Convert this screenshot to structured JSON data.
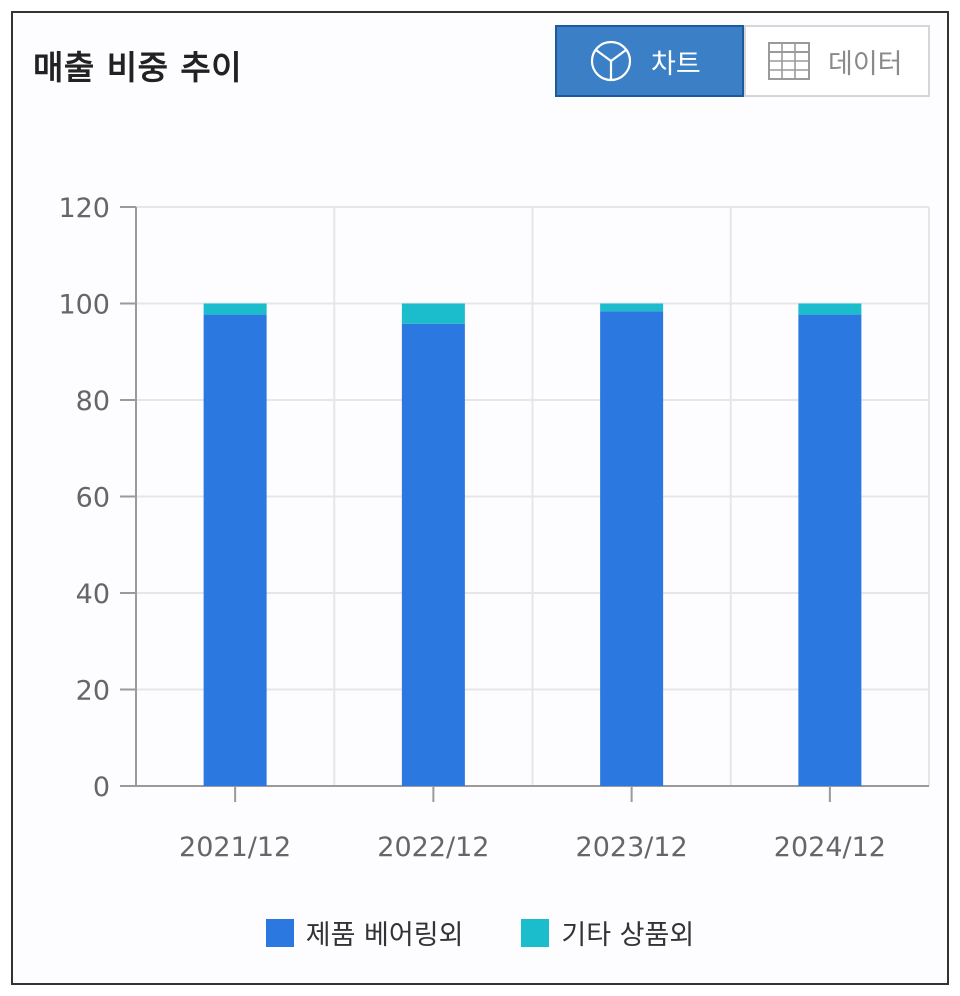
{
  "title": "매출 비중 추이",
  "toggle": {
    "chart_label": "차트",
    "chart_icon": "pie-chart-icon",
    "data_label": "데이터",
    "data_icon": "table-grid-icon",
    "active": "chart"
  },
  "colors": {
    "series1": "#2a78e0",
    "series2": "#1bbccc",
    "toggle_active_bg": "#3b7fc6"
  },
  "chart_data": {
    "type": "bar",
    "stacked": true,
    "categories": [
      "2021/12",
      "2022/12",
      "2023/12",
      "2024/12"
    ],
    "series": [
      {
        "name": "제품 베어링외",
        "values": [
          97.7,
          95.8,
          98.4,
          97.7
        ]
      },
      {
        "name": "기타 상품외",
        "values": [
          2.3,
          4.2,
          1.6,
          2.3
        ]
      }
    ],
    "ylim": [
      0,
      120
    ],
    "yticks": [
      0,
      20,
      40,
      60,
      80,
      100,
      120
    ],
    "grid": true,
    "legend": "bottom"
  }
}
